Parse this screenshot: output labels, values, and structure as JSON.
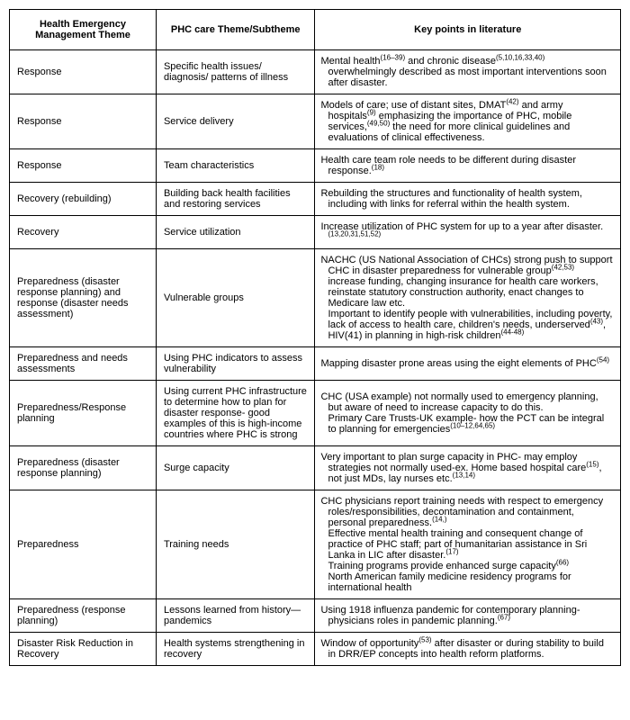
{
  "columns": [
    "Health Emergency Management Theme",
    "PHC care Theme/Subtheme",
    "Key points in literature"
  ],
  "rows": [
    {
      "theme": "Response",
      "subtheme": "Specific health issues/ diagnosis/ patterns of illness",
      "keypoints": "Mental health<sup>(16–39)</sup> and chronic disease<sup>(5,10,16,33,40)</sup> overwhelmingly described as most important interventions soon after disaster."
    },
    {
      "theme": "Response",
      "subtheme": "Service delivery",
      "keypoints": "Models of care; use of distant sites, DMAT<sup>(42)</sup> and army hospitals<sup>(9)</sup> emphasizing the importance of PHC, mobile services,<sup>(49,50)</sup> the need for more clinical guidelines and evaluations of clinical effectiveness."
    },
    {
      "theme": "Response",
      "subtheme": "Team characteristics",
      "keypoints": "Health care team role needs to be different during disaster response.<sup>(18)</sup>"
    },
    {
      "theme": "Recovery (rebuilding)",
      "subtheme": "Building back health facilities and restoring services",
      "keypoints": "Rebuilding the structures and functionality of health system, including with links for referral within the health system."
    },
    {
      "theme": "Recovery",
      "subtheme": "Service utilization",
      "keypoints": "Increase utilization of PHC system for up to a year after disaster.<sup>(13,20,31,51,52)</sup>"
    },
    {
      "theme": "Preparedness (disaster response planning) and response (disaster needs assessment)",
      "subtheme": "Vulnerable groups",
      "keypoints": "NACHC (US National Association of CHCs) strong push to support CHC in disaster preparedness for vulnerable group<sup>(42,53)</sup> increase funding, changing insurance for health care workers, reinstate statutory construction authority, enact changes to Medicare law etc.<br>Important to identify people with vulnerabilities, including poverty, lack of access to health care, children's needs, underserved<sup>(43)</sup>, HIV(41) in planning in high-risk children<sup>(44-48)</sup>"
    },
    {
      "theme": "Preparedness and needs assessments",
      "subtheme": "Using PHC indicators to assess vulnerability",
      "keypoints": "Mapping disaster prone areas using the eight elements of PHC<sup>(54)</sup>"
    },
    {
      "theme": "Preparedness/Response planning",
      "subtheme": "Using current PHC infrastructure to determine how to plan for disaster response- good examples of this is high-income countries where PHC is strong",
      "keypoints": "CHC (USA example) not normally used to emergency planning, but aware of need to increase capacity to do this.<br>Primary Care Trusts-UK example- how the PCT can be integral to planning for emergencies<sup>(10–12,64,65)</sup>"
    },
    {
      "theme": "Preparedness (disaster response planning)",
      "subtheme": "Surge capacity",
      "keypoints": "Very important to plan surge capacity in PHC- may employ strategies not normally used-ex. Home based hospital care<sup>(15)</sup>, not just MDs, lay nurses etc.<sup>(13,14)</sup>"
    },
    {
      "theme": "Preparedness",
      "subtheme": "Training needs",
      "keypoints": "CHC physicians report training needs with respect to emergency roles/responsibilities, decontamination and containment, personal preparedness.<sup>(14,)</sup><br>Effective mental health training and consequent change of practice of PHC staff; part of humanitarian assistance in Sri Lanka in LIC after disaster.<sup>(17)</sup><br>Training programs provide enhanced surge capacity<sup>(66)</sup><br>North American family medicine residency programs for international health"
    },
    {
      "theme": "Preparedness (response planning)",
      "subtheme": "Lessons learned from history—pandemics",
      "keypoints": "Using 1918 influenza pandemic for contemporary planning- physicians roles in pandemic planning.<sup>(67)</sup>"
    },
    {
      "theme": "Disaster Risk Reduction in Recovery",
      "subtheme": "Health systems strengthening in recovery",
      "keypoints": "Window of opportunity<sup>(53)</sup> after disaster or during stability to build in DRR/EP concepts into health reform platforms."
    }
  ]
}
